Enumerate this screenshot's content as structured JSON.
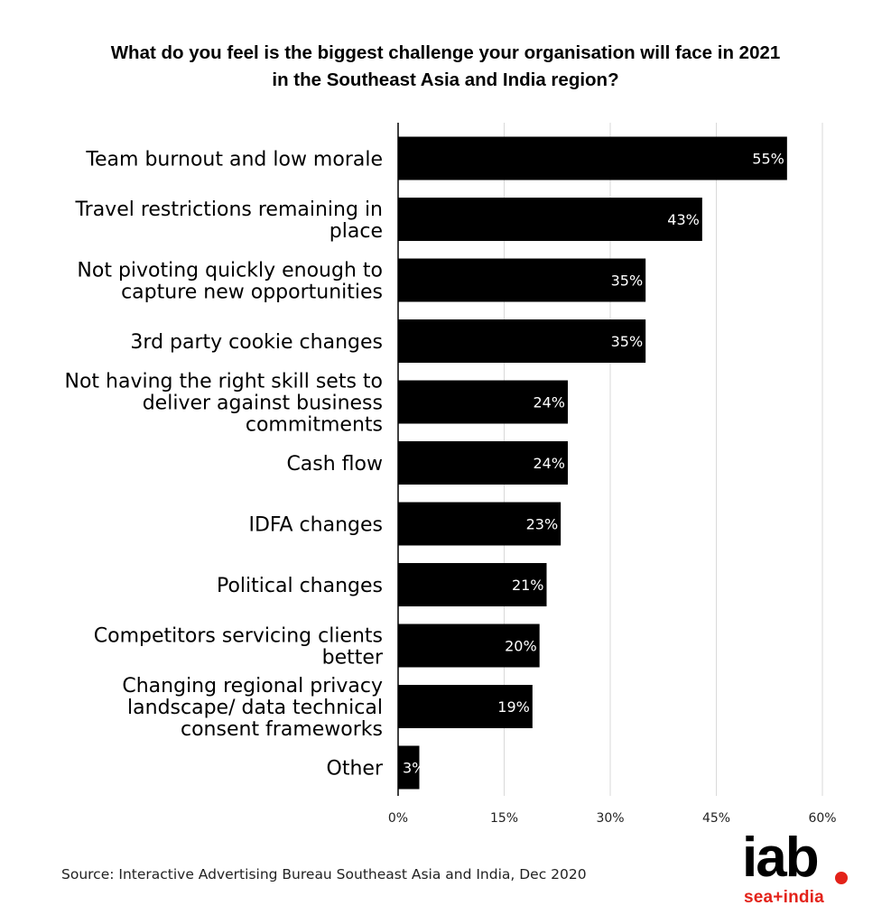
{
  "chart_data": {
    "type": "bar",
    "orientation": "horizontal",
    "title": "What do you feel is the biggest challenge your organisation will face in 2021\nin the Southeast Asia and India region?",
    "categories": [
      "Team burnout and low morale",
      "Travel restrictions remaining in place",
      "Not pivoting quickly enough to capture new opportunities",
      "3rd party cookie changes",
      "Not having the right skill sets to deliver against business commitments",
      "Cash flow",
      "IDFA changes",
      "Political changes",
      "Competitors servicing clients better",
      "Changing regional privacy landscape/ data technical consent frameworks",
      "Other"
    ],
    "category_lines": [
      [
        "Team burnout and low morale"
      ],
      [
        "Travel restrictions remaining in",
        "place"
      ],
      [
        "Not pivoting quickly enough to",
        "capture new opportunities"
      ],
      [
        "3rd party cookie changes"
      ],
      [
        "Not having the right skill sets to",
        "deliver against business",
        "commitments"
      ],
      [
        "Cash flow"
      ],
      [
        "IDFA changes"
      ],
      [
        "Political changes"
      ],
      [
        "Competitors servicing clients",
        "better"
      ],
      [
        "Changing regional privacy",
        "landscape/ data technical",
        "consent frameworks"
      ],
      [
        "Other"
      ]
    ],
    "values": [
      55,
      43,
      35,
      35,
      24,
      24,
      23,
      21,
      20,
      19,
      3
    ],
    "value_labels": [
      "55%",
      "43%",
      "35%",
      "35%",
      "24%",
      "24%",
      "23%",
      "21%",
      "20%",
      "19%",
      "3%"
    ],
    "xlim": [
      0,
      60
    ],
    "ticks": [
      0,
      15,
      30,
      45,
      60
    ],
    "tick_labels": [
      "0%",
      "15%",
      "30%",
      "45%",
      "60%"
    ],
    "grid": true,
    "legend": "none",
    "bar_color": "#000000"
  },
  "source": "Source: Interactive Advertising Bureau Southeast Asia and India, Dec 2020",
  "logo": {
    "main": "iab",
    "sub": "sea+india",
    "accent_color": "#e32219"
  }
}
